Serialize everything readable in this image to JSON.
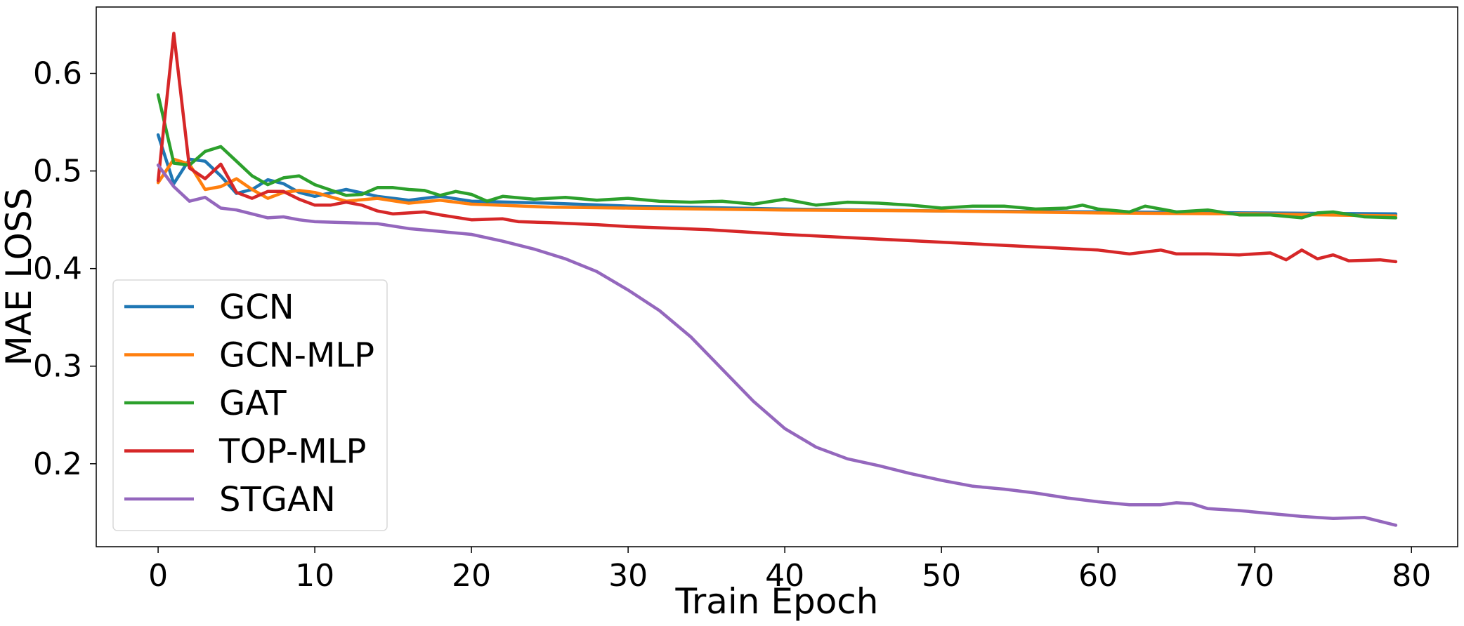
{
  "chart_data": {
    "type": "line",
    "xlabel": "Train Epoch",
    "ylabel": "MAE LOSS",
    "xlim": [
      -3.95,
      82.95
    ],
    "ylim": [
      0.115,
      0.668
    ],
    "xticks": [
      0,
      10,
      20,
      30,
      40,
      50,
      60,
      70,
      80
    ],
    "yticks": [
      0.2,
      0.3,
      0.4,
      0.5,
      0.6
    ],
    "xtick_labels": [
      "0",
      "10",
      "20",
      "30",
      "40",
      "50",
      "60",
      "70",
      "80"
    ],
    "ytick_labels": [
      "0.2",
      "0.3",
      "0.4",
      "0.5",
      "0.6"
    ],
    "grid": false,
    "legend_position": "lower-left",
    "series": [
      {
        "name": "GCN",
        "color": "#1f77b4",
        "points": [
          [
            0,
            0.537
          ],
          [
            1,
            0.487
          ],
          [
            2,
            0.512
          ],
          [
            3,
            0.51
          ],
          [
            4,
            0.495
          ],
          [
            5,
            0.477
          ],
          [
            6,
            0.481
          ],
          [
            7,
            0.491
          ],
          [
            8,
            0.487
          ],
          [
            9,
            0.478
          ],
          [
            10,
            0.474
          ],
          [
            12,
            0.481
          ],
          [
            14,
            0.474
          ],
          [
            16,
            0.47
          ],
          [
            18,
            0.474
          ],
          [
            20,
            0.469
          ],
          [
            25,
            0.467
          ],
          [
            30,
            0.464
          ],
          [
            40,
            0.461
          ],
          [
            50,
            0.459
          ],
          [
            60,
            0.458
          ],
          [
            70,
            0.457
          ],
          [
            79,
            0.456
          ]
        ]
      },
      {
        "name": "GCN-MLP",
        "color": "#ff7f0e",
        "points": [
          [
            0,
            0.488
          ],
          [
            1,
            0.512
          ],
          [
            2,
            0.507
          ],
          [
            3,
            0.481
          ],
          [
            4,
            0.484
          ],
          [
            5,
            0.492
          ],
          [
            6,
            0.481
          ],
          [
            7,
            0.472
          ],
          [
            8,
            0.478
          ],
          [
            9,
            0.48
          ],
          [
            10,
            0.478
          ],
          [
            12,
            0.469
          ],
          [
            14,
            0.472
          ],
          [
            16,
            0.467
          ],
          [
            18,
            0.47
          ],
          [
            20,
            0.466
          ],
          [
            25,
            0.463
          ],
          [
            30,
            0.462
          ],
          [
            35,
            0.461
          ],
          [
            40,
            0.46
          ],
          [
            50,
            0.459
          ],
          [
            60,
            0.457
          ],
          [
            70,
            0.456
          ],
          [
            79,
            0.454
          ]
        ]
      },
      {
        "name": "GAT",
        "color": "#2ca02c",
        "points": [
          [
            0,
            0.578
          ],
          [
            1,
            0.508
          ],
          [
            2,
            0.506
          ],
          [
            3,
            0.52
          ],
          [
            4,
            0.525
          ],
          [
            5,
            0.51
          ],
          [
            6,
            0.495
          ],
          [
            7,
            0.486
          ],
          [
            8,
            0.493
          ],
          [
            9,
            0.495
          ],
          [
            10,
            0.486
          ],
          [
            12,
            0.475
          ],
          [
            13,
            0.476
          ],
          [
            14,
            0.483
          ],
          [
            15,
            0.483
          ],
          [
            16,
            0.481
          ],
          [
            17,
            0.48
          ],
          [
            18,
            0.475
          ],
          [
            19,
            0.479
          ],
          [
            20,
            0.476
          ],
          [
            21,
            0.469
          ],
          [
            22,
            0.474
          ],
          [
            24,
            0.471
          ],
          [
            26,
            0.473
          ],
          [
            28,
            0.47
          ],
          [
            30,
            0.472
          ],
          [
            32,
            0.469
          ],
          [
            34,
            0.468
          ],
          [
            36,
            0.469
          ],
          [
            38,
            0.466
          ],
          [
            40,
            0.471
          ],
          [
            42,
            0.465
          ],
          [
            44,
            0.468
          ],
          [
            46,
            0.467
          ],
          [
            48,
            0.465
          ],
          [
            50,
            0.462
          ],
          [
            52,
            0.464
          ],
          [
            54,
            0.464
          ],
          [
            56,
            0.461
          ],
          [
            58,
            0.462
          ],
          [
            59,
            0.465
          ],
          [
            60,
            0.461
          ],
          [
            62,
            0.458
          ],
          [
            63,
            0.464
          ],
          [
            65,
            0.458
          ],
          [
            67,
            0.46
          ],
          [
            69,
            0.455
          ],
          [
            71,
            0.455
          ],
          [
            73,
            0.452
          ],
          [
            74,
            0.457
          ],
          [
            75,
            0.458
          ],
          [
            77,
            0.453
          ],
          [
            79,
            0.452
          ]
        ]
      },
      {
        "name": "TOP-MLP",
        "color": "#d62728",
        "points": [
          [
            0,
            0.49
          ],
          [
            1,
            0.641
          ],
          [
            2,
            0.503
          ],
          [
            3,
            0.492
          ],
          [
            4,
            0.507
          ],
          [
            5,
            0.478
          ],
          [
            6,
            0.472
          ],
          [
            7,
            0.479
          ],
          [
            8,
            0.479
          ],
          [
            9,
            0.471
          ],
          [
            10,
            0.465
          ],
          [
            11,
            0.465
          ],
          [
            12,
            0.468
          ],
          [
            13,
            0.465
          ],
          [
            14,
            0.459
          ],
          [
            15,
            0.456
          ],
          [
            17,
            0.458
          ],
          [
            18,
            0.455
          ],
          [
            20,
            0.45
          ],
          [
            22,
            0.451
          ],
          [
            23,
            0.448
          ],
          [
            25,
            0.447
          ],
          [
            28,
            0.445
          ],
          [
            30,
            0.443
          ],
          [
            35,
            0.44
          ],
          [
            40,
            0.435
          ],
          [
            45,
            0.431
          ],
          [
            50,
            0.427
          ],
          [
            55,
            0.423
          ],
          [
            60,
            0.419
          ],
          [
            62,
            0.415
          ],
          [
            64,
            0.419
          ],
          [
            65,
            0.415
          ],
          [
            67,
            0.415
          ],
          [
            69,
            0.414
          ],
          [
            71,
            0.416
          ],
          [
            72,
            0.409
          ],
          [
            73,
            0.419
          ],
          [
            74,
            0.41
          ],
          [
            75,
            0.414
          ],
          [
            76,
            0.408
          ],
          [
            78,
            0.409
          ],
          [
            79,
            0.407
          ]
        ]
      },
      {
        "name": "STGAN",
        "color": "#9467bd",
        "points": [
          [
            0,
            0.506
          ],
          [
            1,
            0.484
          ],
          [
            2,
            0.469
          ],
          [
            3,
            0.473
          ],
          [
            4,
            0.462
          ],
          [
            5,
            0.46
          ],
          [
            6,
            0.456
          ],
          [
            7,
            0.452
          ],
          [
            8,
            0.453
          ],
          [
            9,
            0.45
          ],
          [
            10,
            0.448
          ],
          [
            12,
            0.447
          ],
          [
            14,
            0.446
          ],
          [
            16,
            0.441
          ],
          [
            18,
            0.438
          ],
          [
            20,
            0.435
          ],
          [
            22,
            0.428
          ],
          [
            24,
            0.42
          ],
          [
            26,
            0.41
          ],
          [
            28,
            0.397
          ],
          [
            30,
            0.378
          ],
          [
            32,
            0.357
          ],
          [
            34,
            0.33
          ],
          [
            36,
            0.297
          ],
          [
            38,
            0.264
          ],
          [
            40,
            0.236
          ],
          [
            42,
            0.217
          ],
          [
            44,
            0.205
          ],
          [
            46,
            0.198
          ],
          [
            48,
            0.19
          ],
          [
            50,
            0.183
          ],
          [
            52,
            0.177
          ],
          [
            54,
            0.174
          ],
          [
            56,
            0.17
          ],
          [
            58,
            0.165
          ],
          [
            60,
            0.161
          ],
          [
            62,
            0.158
          ],
          [
            64,
            0.158
          ],
          [
            65,
            0.16
          ],
          [
            66,
            0.159
          ],
          [
            67,
            0.154
          ],
          [
            69,
            0.152
          ],
          [
            71,
            0.149
          ],
          [
            73,
            0.146
          ],
          [
            75,
            0.144
          ],
          [
            77,
            0.145
          ],
          [
            79,
            0.137
          ]
        ]
      }
    ]
  }
}
